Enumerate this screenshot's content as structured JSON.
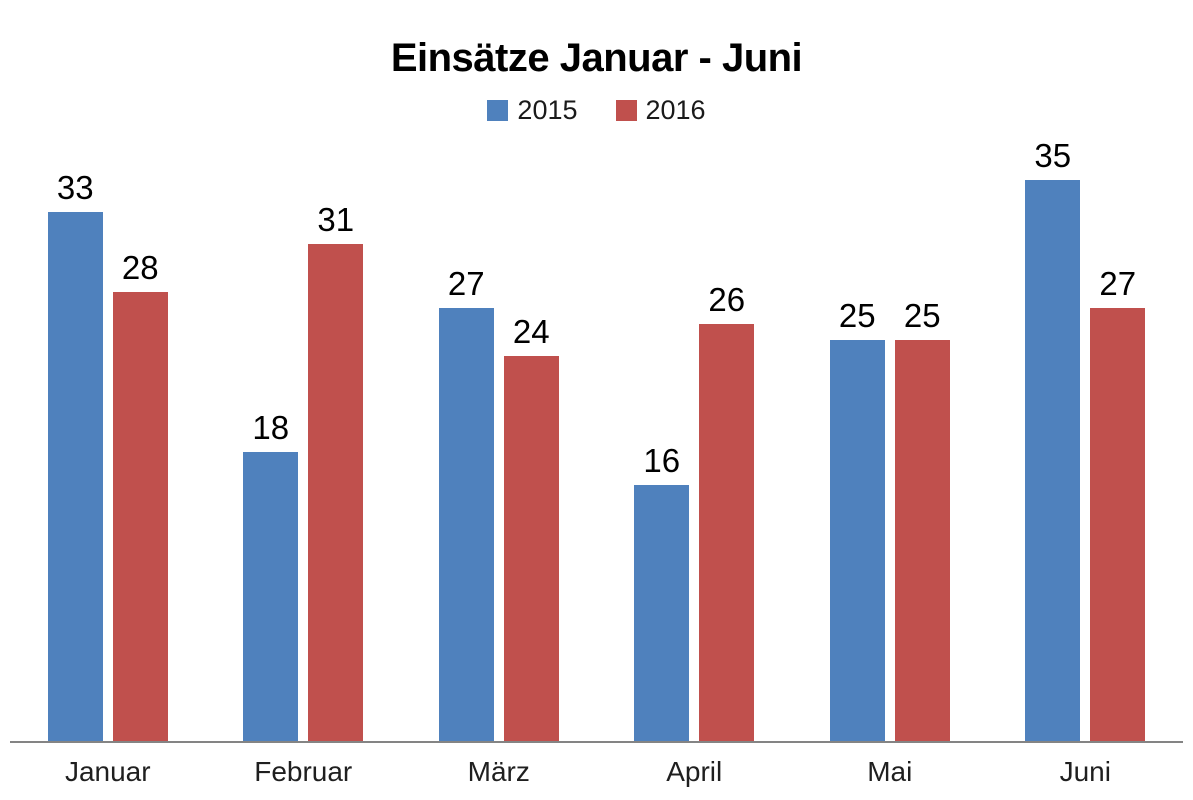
{
  "chart_data": {
    "type": "bar",
    "title": "Einsätze Januar - Juni",
    "categories": [
      "Januar",
      "Februar",
      "März",
      "April",
      "Mai",
      "Juni"
    ],
    "series": [
      {
        "name": "2015",
        "color": "#4F81BD",
        "values": [
          33,
          18,
          27,
          16,
          25,
          35
        ]
      },
      {
        "name": "2016",
        "color": "#C0504D",
        "values": [
          28,
          31,
          24,
          26,
          25,
          27
        ]
      }
    ],
    "data_labels": [
      {
        "category": "Januar",
        "2015": 33,
        "2016": 28
      },
      {
        "category": "Februar",
        "2015": 18,
        "2016": 31
      },
      {
        "category": "März",
        "2015": 27,
        "2016": 24
      },
      {
        "category": "April",
        "2015": 16,
        "2016": 26
      },
      {
        "category": "Mai",
        "2015": 25,
        "2016": 25
      },
      {
        "category": "Juni",
        "2015": 35,
        "2016": 27
      }
    ],
    "xlabel": "",
    "ylabel": "",
    "ylim": [
      0,
      35
    ],
    "grid": false,
    "legend_position": "top-center",
    "y_axis_visible": false,
    "x_axis_line_color": "#848484",
    "background_color": "#FFFFFF",
    "text_color": "#000000"
  }
}
